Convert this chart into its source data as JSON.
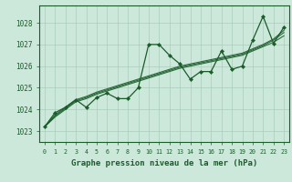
{
  "title": "Graphe pression niveau de la mer (hPa)",
  "bg_color": "#cce8da",
  "grid_color": "#aaccbb",
  "line_color": "#1a5c2a",
  "ylim": [
    1022.5,
    1028.8
  ],
  "xlim": [
    -0.5,
    23.5
  ],
  "yticks": [
    1023,
    1024,
    1025,
    1026,
    1027,
    1028
  ],
  "xticks": [
    0,
    1,
    2,
    3,
    4,
    5,
    6,
    7,
    8,
    9,
    10,
    11,
    12,
    13,
    14,
    15,
    16,
    17,
    18,
    19,
    20,
    21,
    22,
    23
  ],
  "main_series": [
    1023.2,
    1023.85,
    1024.1,
    1024.45,
    1024.1,
    1024.55,
    1024.75,
    1024.5,
    1024.5,
    1025.0,
    1027.0,
    1027.0,
    1026.5,
    1026.1,
    1025.4,
    1025.75,
    1025.75,
    1026.7,
    1025.85,
    1026.0,
    1027.2,
    1028.3,
    1027.05,
    1027.8
  ],
  "trend1": [
    1023.2,
    1023.65,
    1024.0,
    1024.35,
    1024.5,
    1024.7,
    1024.85,
    1025.0,
    1025.15,
    1025.3,
    1025.45,
    1025.6,
    1025.75,
    1025.9,
    1026.0,
    1026.1,
    1026.2,
    1026.3,
    1026.4,
    1026.5,
    1026.7,
    1026.9,
    1027.1,
    1027.4
  ],
  "trend2": [
    1023.2,
    1023.7,
    1024.05,
    1024.4,
    1024.55,
    1024.75,
    1024.9,
    1025.05,
    1025.2,
    1025.35,
    1025.5,
    1025.65,
    1025.8,
    1025.95,
    1026.05,
    1026.15,
    1026.25,
    1026.35,
    1026.45,
    1026.55,
    1026.75,
    1026.95,
    1027.2,
    1027.55
  ],
  "trend3": [
    1023.2,
    1023.75,
    1024.1,
    1024.45,
    1024.6,
    1024.8,
    1024.95,
    1025.1,
    1025.25,
    1025.4,
    1025.55,
    1025.7,
    1025.85,
    1026.0,
    1026.1,
    1026.2,
    1026.3,
    1026.4,
    1026.5,
    1026.6,
    1026.8,
    1027.0,
    1027.25,
    1027.65
  ]
}
